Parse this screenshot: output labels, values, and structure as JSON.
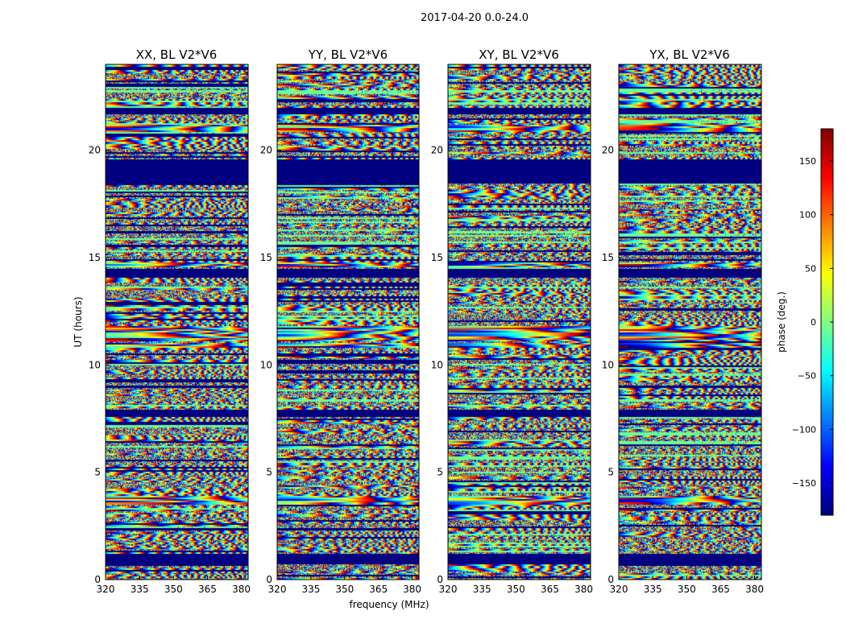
{
  "chart_data": {
    "type": "heatmap",
    "suptitle": "2017-04-20 0.0-24.0",
    "xlabel": "frequency (MHz)",
    "ylabel": "UT (hours)",
    "xlim": [
      320,
      383
    ],
    "ylim": [
      0,
      24
    ],
    "xticks": [
      "320",
      "335",
      "350",
      "365",
      "380"
    ],
    "yticks": [
      "0",
      "5",
      "10",
      "15",
      "20"
    ],
    "colormap": "jet",
    "panels": [
      {
        "title": "XX, BL V2*V6",
        "seed": 11,
        "phase_offset": 0
      },
      {
        "title": "YY, BL V2*V6",
        "seed": 23,
        "phase_offset": 20
      },
      {
        "title": "XY, BL V2*V6",
        "seed": 37,
        "phase_offset": 60
      },
      {
        "title": "YX, BL V2*V6",
        "seed": 51,
        "phase_offset": 100
      }
    ],
    "colorbar": {
      "label": "phase (deg.)",
      "range": [
        -180,
        180
      ],
      "ticks": [
        "150",
        "100",
        "50",
        "0",
        "−50",
        "−100",
        "−150"
      ],
      "tick_values": [
        150,
        100,
        50,
        0,
        -50,
        -100,
        -150
      ]
    },
    "flagged_bands_hours": [
      [
        0.7,
        1.2
      ],
      [
        7.6,
        7.9
      ],
      [
        14.1,
        14.5
      ],
      [
        18.5,
        19.6
      ],
      [
        21.7,
        22.0
      ]
    ],
    "fringe_bands_hours": [
      [
        11.1,
        11.8
      ],
      [
        14.6,
        14.8
      ],
      [
        10.8,
        11.0
      ],
      [
        3.5,
        3.9
      ],
      [
        20.9,
        21.2
      ]
    ]
  }
}
